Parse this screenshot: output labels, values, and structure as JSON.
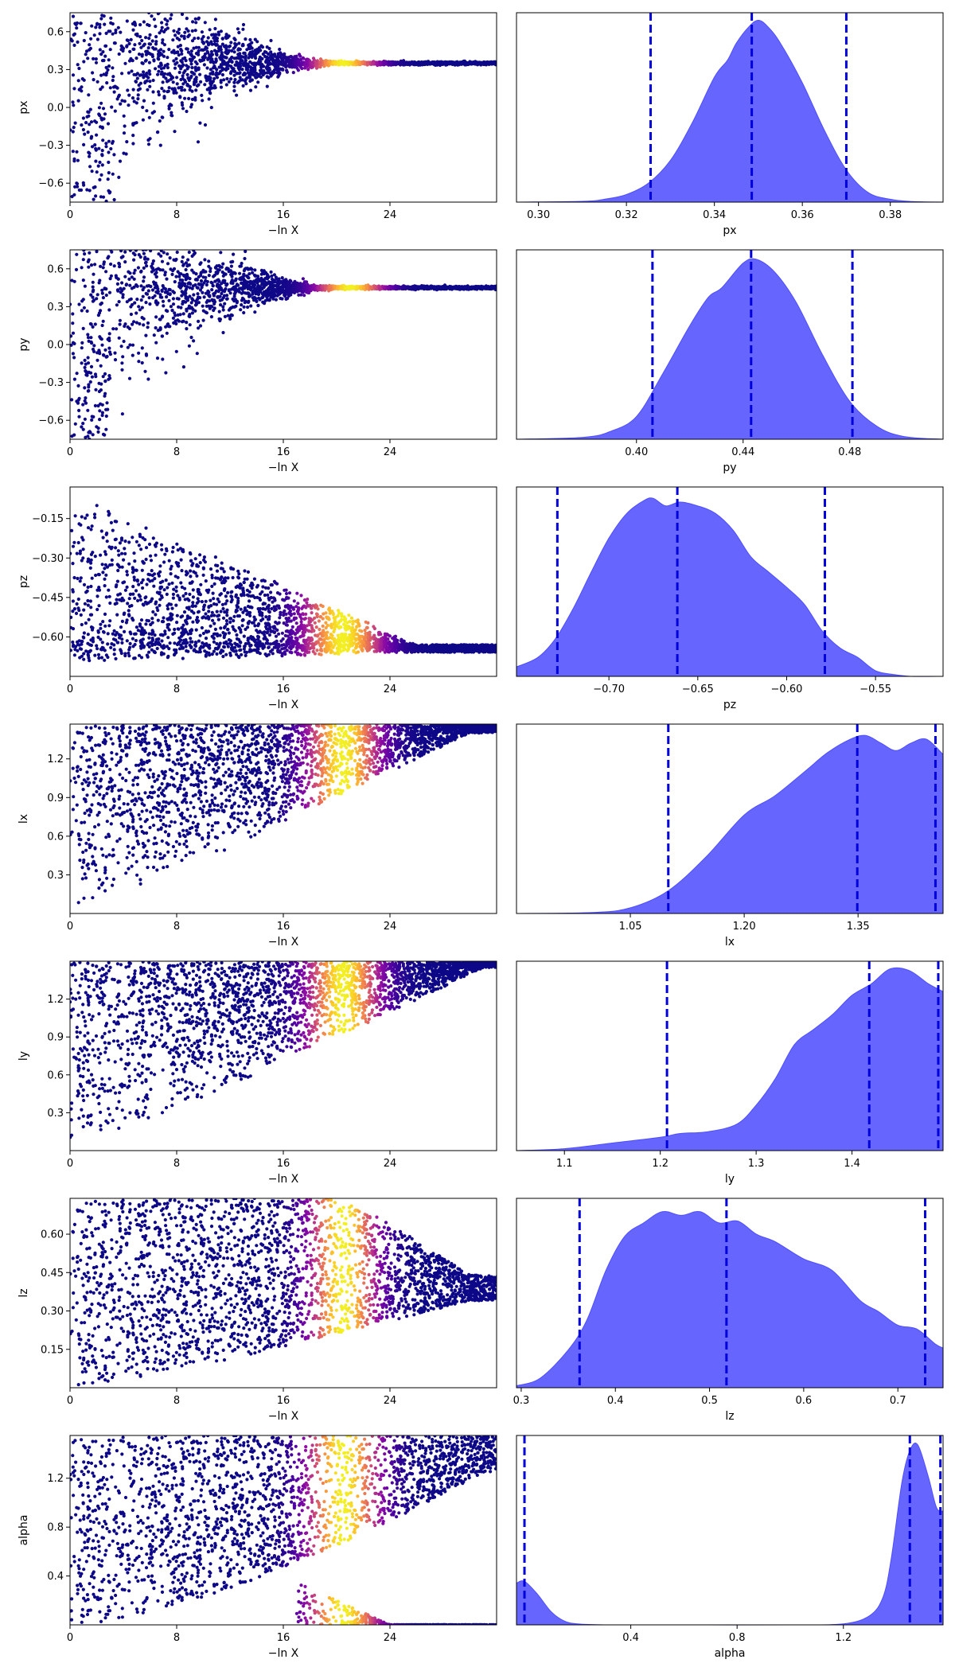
{
  "figure": {
    "layout": "7 rows x 2 columns: run trace (left) and marginal posterior density (right)",
    "trace_xlabel": "−ln X",
    "trace_xticks": [
      "0",
      "8",
      "16",
      "24"
    ],
    "trace_xlim": [
      0,
      32
    ],
    "density_fill_color": "#6666ff",
    "quantile_line_color": "#0000dd",
    "trace_colormap": "plasma"
  },
  "chart_data": [
    {
      "type": "scatter",
      "panel": "trace",
      "param": "px",
      "ylabel": "px",
      "xlabel": "−ln X",
      "xlim": [
        0,
        32
      ],
      "ylim": [
        -0.75,
        0.75
      ],
      "xticks": [
        "0",
        "8",
        "16",
        "24"
      ],
      "yticks": [
        "-0.6",
        "-0.3",
        "0.0",
        "0.3",
        "0.6"
      ],
      "shape": "funnel",
      "converge_to": 0.35,
      "converge_x": 21,
      "spread_start": 1.5,
      "peak_x": 20.5,
      "peak_width": 2.4
    },
    {
      "type": "area",
      "panel": "density",
      "param": "px",
      "xlabel": "px",
      "xlim": [
        0.295,
        0.392
      ],
      "xticks": [
        "0.30",
        "0.32",
        "0.34",
        "0.36",
        "0.38"
      ],
      "quantiles": [
        0.3255,
        0.3485,
        0.37
      ],
      "x": [
        0.295,
        0.31,
        0.315,
        0.32,
        0.325,
        0.33,
        0.335,
        0.34,
        0.343,
        0.345,
        0.348,
        0.35,
        0.352,
        0.355,
        0.36,
        0.365,
        0.37,
        0.375,
        0.38,
        0.385,
        0.392
      ],
      "y": [
        0.0,
        0.004,
        0.015,
        0.04,
        0.1,
        0.22,
        0.42,
        0.66,
        0.75,
        0.84,
        0.93,
        0.96,
        0.93,
        0.84,
        0.63,
        0.38,
        0.17,
        0.05,
        0.015,
        0.003,
        0.0
      ]
    },
    {
      "type": "scatter",
      "panel": "trace",
      "param": "py",
      "ylabel": "py",
      "xlabel": "−ln X",
      "xlim": [
        0,
        32
      ],
      "ylim": [
        -0.75,
        0.75
      ],
      "xticks": [
        "0",
        "8",
        "16",
        "24"
      ],
      "yticks": [
        "-0.6",
        "-0.3",
        "0.0",
        "0.3",
        "0.6"
      ],
      "shape": "funnel",
      "converge_to": 0.45,
      "converge_x": 21,
      "spread_start": 1.5,
      "peak_x": 21,
      "peak_width": 2.4
    },
    {
      "type": "area",
      "panel": "density",
      "param": "py",
      "xlabel": "py",
      "xlim": [
        0.355,
        0.515
      ],
      "xticks": [
        "0.40",
        "0.44",
        "0.48"
      ],
      "quantiles": [
        0.406,
        0.443,
        0.481
      ],
      "x": [
        0.355,
        0.38,
        0.39,
        0.4,
        0.41,
        0.42,
        0.427,
        0.432,
        0.44,
        0.445,
        0.452,
        0.46,
        0.47,
        0.48,
        0.49,
        0.5,
        0.515
      ],
      "y": [
        0.0,
        0.01,
        0.04,
        0.12,
        0.35,
        0.6,
        0.75,
        0.8,
        0.93,
        0.95,
        0.88,
        0.72,
        0.44,
        0.2,
        0.07,
        0.015,
        0.0
      ]
    },
    {
      "type": "scatter",
      "panel": "trace",
      "param": "pz",
      "ylabel": "pz",
      "xlabel": "−ln X",
      "xlim": [
        0,
        32
      ],
      "ylim": [
        -0.75,
        -0.03
      ],
      "xticks": [
        "0",
        "8",
        "16",
        "24"
      ],
      "yticks": [
        "-0.60",
        "-0.45",
        "-0.30",
        "-0.15"
      ],
      "shape": "wedge_down",
      "converge_to": -0.63,
      "converge_x": 26,
      "spread_start": 0.6,
      "peak_x": 20.5,
      "peak_width": 2.8
    },
    {
      "type": "area",
      "panel": "density",
      "param": "pz",
      "xlabel": "pz",
      "xlim": [
        -0.752,
        -0.512
      ],
      "xticks": [
        "−0.70",
        "−0.65",
        "−0.60",
        "−0.55"
      ],
      "quantiles": [
        -0.729,
        -0.6615,
        -0.5785
      ],
      "x": [
        -0.752,
        -0.74,
        -0.73,
        -0.72,
        -0.71,
        -0.7,
        -0.69,
        -0.68,
        -0.675,
        -0.668,
        -0.66,
        -0.65,
        -0.64,
        -0.63,
        -0.62,
        -0.61,
        -0.6,
        -0.59,
        -0.58,
        -0.57,
        -0.56,
        -0.55,
        -0.54,
        -0.53,
        -0.512
      ],
      "y": [
        0.05,
        0.1,
        0.2,
        0.36,
        0.55,
        0.73,
        0.86,
        0.93,
        0.94,
        0.9,
        0.92,
        0.9,
        0.86,
        0.77,
        0.63,
        0.55,
        0.47,
        0.38,
        0.24,
        0.15,
        0.1,
        0.03,
        0.01,
        0.0,
        0.0
      ]
    },
    {
      "type": "scatter",
      "panel": "trace",
      "param": "lx",
      "ylabel": "lx",
      "xlabel": "−ln X",
      "xlim": [
        0,
        32
      ],
      "ylim": [
        0.0,
        1.47
      ],
      "xticks": [
        "0",
        "8",
        "16",
        "24"
      ],
      "yticks": [
        "0.3",
        "0.6",
        "0.9",
        "1.2"
      ],
      "shape": "wedge_up",
      "converge_to": 1.4,
      "converge_x": 30,
      "spread_start": 0.7,
      "peak_x": 20.5,
      "peak_width": 2.6
    },
    {
      "type": "area",
      "panel": "density",
      "param": "lx",
      "xlabel": "lx",
      "xlim": [
        0.9,
        1.462
      ],
      "xticks": [
        "1.05",
        "1.20",
        "1.35"
      ],
      "quantiles": [
        1.1,
        1.349,
        1.452
      ],
      "x": [
        0.9,
        1.0,
        1.05,
        1.1,
        1.15,
        1.2,
        1.24,
        1.28,
        1.31,
        1.34,
        1.36,
        1.38,
        1.4,
        1.42,
        1.44,
        1.462
      ],
      "y": [
        0.0,
        0.005,
        0.03,
        0.12,
        0.3,
        0.52,
        0.62,
        0.75,
        0.85,
        0.92,
        0.94,
        0.9,
        0.86,
        0.9,
        0.92,
        0.84
      ]
    },
    {
      "type": "scatter",
      "panel": "trace",
      "param": "ly",
      "ylabel": "ly",
      "xlabel": "−ln X",
      "xlim": [
        0,
        32
      ],
      "ylim": [
        0.0,
        1.5
      ],
      "xticks": [
        "0",
        "8",
        "16",
        "24"
      ],
      "yticks": [
        "0.3",
        "0.6",
        "0.9",
        "1.2"
      ],
      "shape": "wedge_up",
      "converge_to": 1.45,
      "converge_x": 31,
      "spread_start": 0.7,
      "peak_x": 20.5,
      "peak_width": 2.6
    },
    {
      "type": "area",
      "panel": "density",
      "param": "ly",
      "xlabel": "ly",
      "xlim": [
        1.05,
        1.495
      ],
      "xticks": [
        "1.1",
        "1.2",
        "1.3",
        "1.4"
      ],
      "quantiles": [
        1.207,
        1.418,
        1.49
      ],
      "x": [
        1.05,
        1.1,
        1.15,
        1.2,
        1.22,
        1.25,
        1.28,
        1.3,
        1.32,
        1.34,
        1.36,
        1.38,
        1.4,
        1.42,
        1.44,
        1.46,
        1.48,
        1.495
      ],
      "y": [
        0.0,
        0.01,
        0.04,
        0.07,
        0.09,
        0.1,
        0.14,
        0.24,
        0.38,
        0.56,
        0.64,
        0.72,
        0.82,
        0.88,
        0.96,
        0.95,
        0.88,
        0.84
      ]
    },
    {
      "type": "scatter",
      "panel": "trace",
      "param": "lz",
      "ylabel": "lz",
      "xlabel": "−ln X",
      "xlim": [
        0,
        32
      ],
      "ylim": [
        0.0,
        0.74
      ],
      "xticks": [
        "0",
        "8",
        "16",
        "24"
      ],
      "yticks": [
        "0.15",
        "0.30",
        "0.45",
        "0.60"
      ],
      "shape": "wedge_mid",
      "converge_to": 0.4,
      "converge_x": 30,
      "spread_start": 0.7,
      "peak_x": 20.5,
      "peak_width": 2.4
    },
    {
      "type": "area",
      "panel": "density",
      "param": "lz",
      "xlabel": "lz",
      "xlim": [
        0.295,
        0.748
      ],
      "xticks": [
        "0.3",
        "0.4",
        "0.5",
        "0.6",
        "0.7"
      ],
      "quantiles": [
        0.362,
        0.518,
        0.729
      ],
      "x": [
        0.295,
        0.32,
        0.35,
        0.37,
        0.39,
        0.41,
        0.43,
        0.45,
        0.47,
        0.49,
        0.51,
        0.53,
        0.55,
        0.57,
        0.6,
        0.63,
        0.66,
        0.68,
        0.7,
        0.72,
        0.74,
        0.748
      ],
      "y": [
        0.01,
        0.05,
        0.2,
        0.36,
        0.62,
        0.8,
        0.87,
        0.93,
        0.91,
        0.93,
        0.87,
        0.88,
        0.81,
        0.77,
        0.68,
        0.62,
        0.46,
        0.4,
        0.33,
        0.31,
        0.23,
        0.21
      ]
    },
    {
      "type": "scatter",
      "panel": "trace",
      "param": "alpha",
      "ylabel": "alpha",
      "xlabel": "−ln X",
      "xlim": [
        0,
        32
      ],
      "ylim": [
        0.0,
        1.55
      ],
      "xticks": [
        "0",
        "8",
        "16",
        "24"
      ],
      "yticks": [
        "0.4",
        "0.8",
        "1.2"
      ],
      "shape": "split",
      "converge_to": 1.45,
      "converge_x": 31,
      "spread_start": 0.0,
      "peak_x": 20.5,
      "peak_width": 2.6
    },
    {
      "type": "area",
      "panel": "density",
      "param": "alpha",
      "xlabel": "alpha",
      "xlim": [
        -0.03,
        1.575
      ],
      "xticks": [
        "0.4",
        "0.8",
        "1.2"
      ],
      "quantiles": [
        0.0,
        1.45,
        1.565
      ],
      "x": [
        -0.03,
        0.0,
        0.05,
        0.1,
        0.15,
        0.2,
        0.3,
        0.6,
        1.0,
        1.2,
        1.3,
        1.35,
        1.38,
        1.42,
        1.45,
        1.48,
        1.52,
        1.55,
        1.575
      ],
      "y": [
        0.22,
        0.23,
        0.16,
        0.07,
        0.02,
        0.005,
        0.0,
        0.0,
        0.0,
        0.005,
        0.05,
        0.15,
        0.35,
        0.75,
        0.92,
        0.95,
        0.78,
        0.62,
        0.6
      ]
    }
  ]
}
